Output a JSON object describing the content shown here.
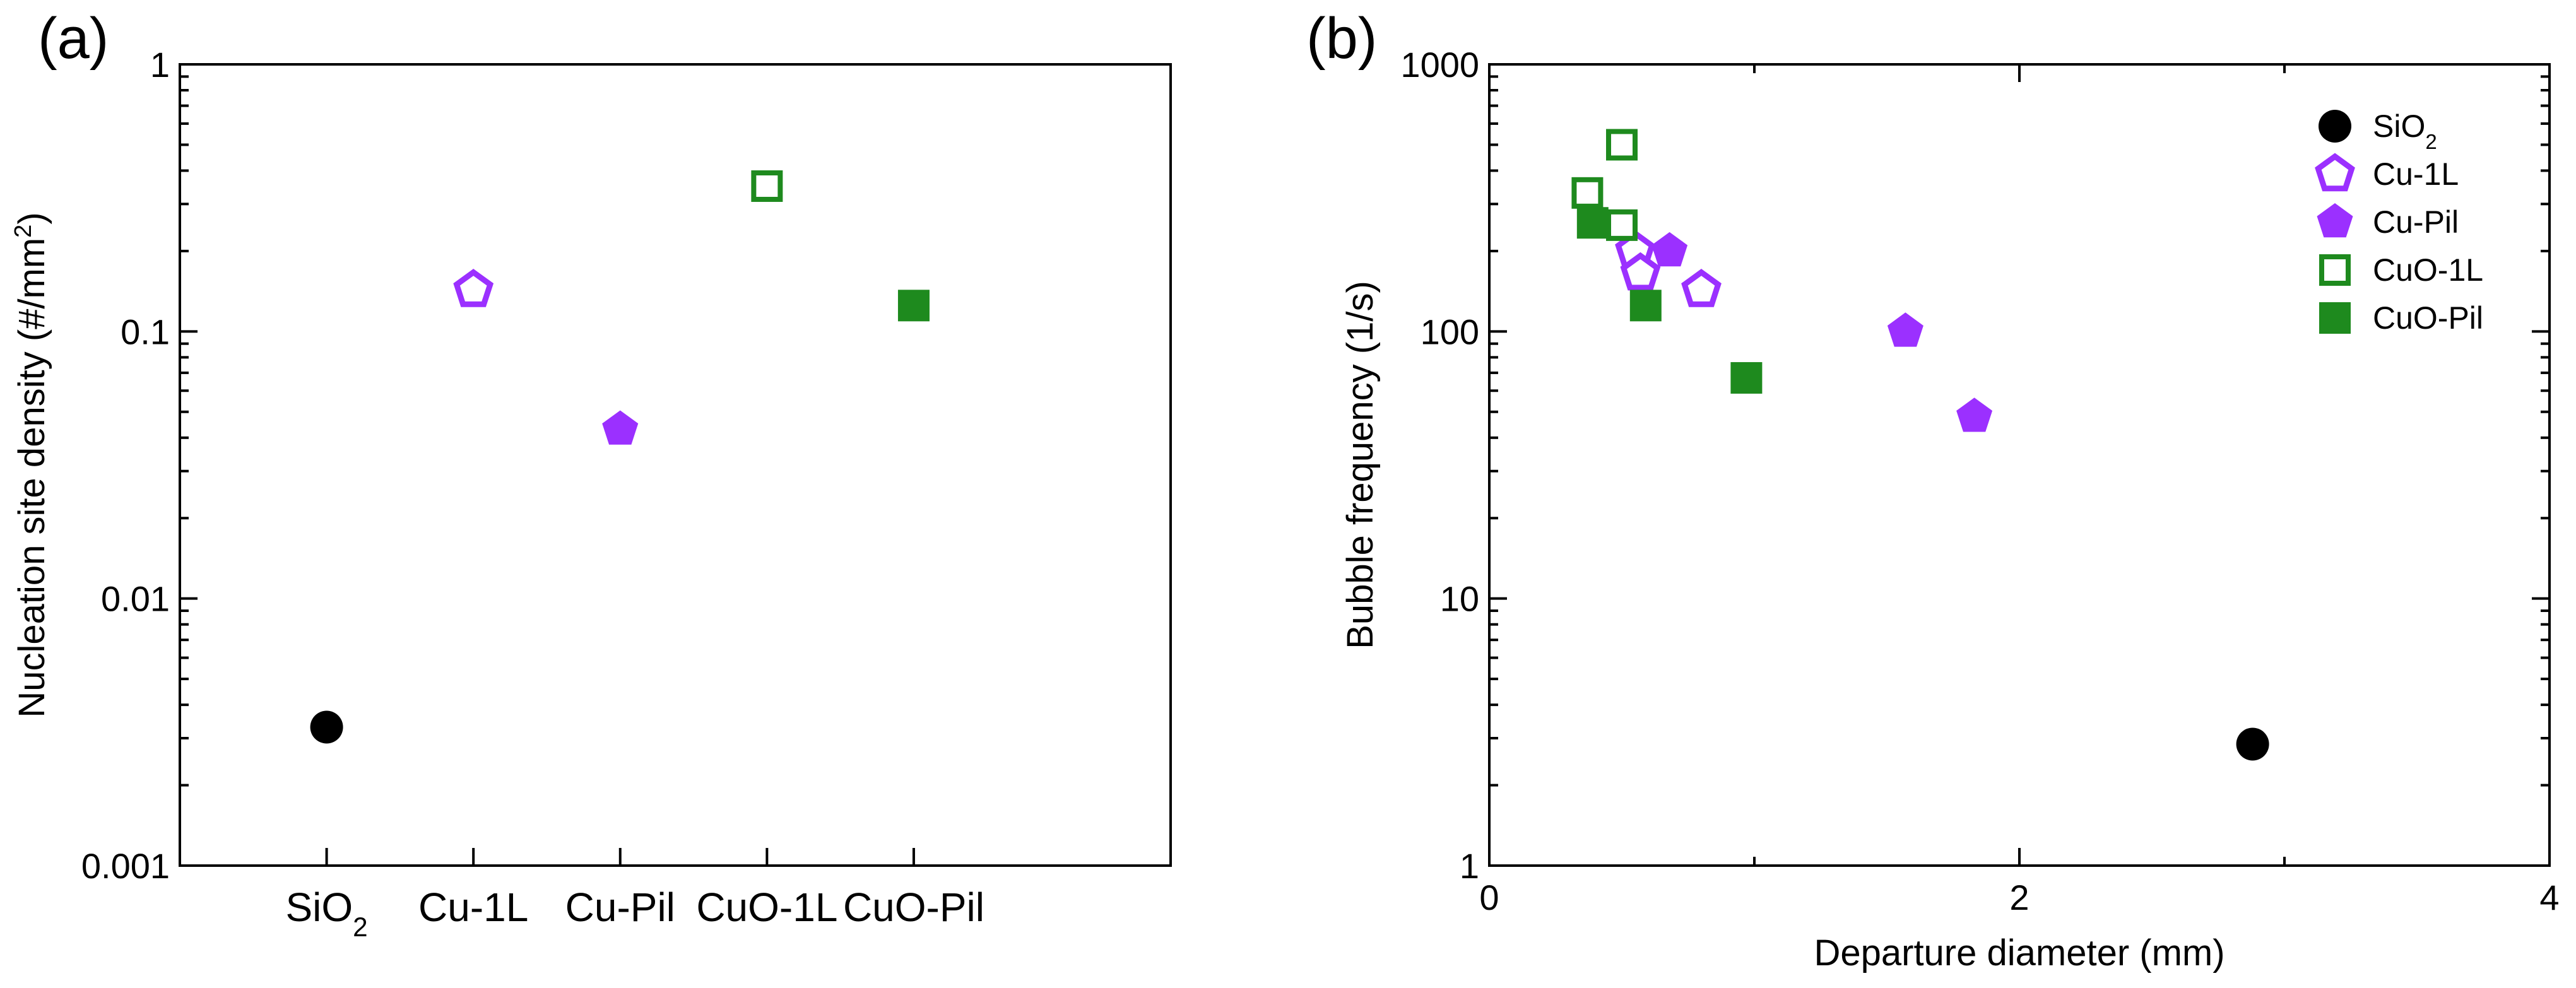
{
  "chart_data": [
    {
      "panel": "(a)",
      "type": "scatter",
      "xlabel": "",
      "ylabel": {
        "prefix": "Nucleation site density (#/mm",
        "sup": "2",
        "suffix": ")"
      },
      "yscale": "log",
      "ylim": [
        0.001,
        1
      ],
      "yticks": [
        0.001,
        0.01,
        0.1,
        1
      ],
      "ytick_labels": [
        "0.001",
        "0.01",
        "0.1",
        "1"
      ],
      "categories": [
        {
          "base": "SiO",
          "sub": "2"
        },
        {
          "base": "Cu-1L",
          "sub": ""
        },
        {
          "base": "Cu-Pil",
          "sub": ""
        },
        {
          "base": "CuO-1L",
          "sub": ""
        },
        {
          "base": "CuO-Pil",
          "sub": ""
        }
      ],
      "points": [
        {
          "category": 0,
          "value": 0.0033,
          "series": "SiO2"
        },
        {
          "category": 1,
          "value": 0.143,
          "series": "Cu-1L"
        },
        {
          "category": 2,
          "value": 0.043,
          "series": "Cu-Pil"
        },
        {
          "category": 3,
          "value": 0.35,
          "series": "CuO-1L"
        },
        {
          "category": 4,
          "value": 0.125,
          "series": "CuO-Pil"
        }
      ]
    },
    {
      "panel": "(b)",
      "type": "scatter",
      "xlabel": "Departure diameter (mm)",
      "ylabel": "Bubble frequency (1/s)",
      "xlim": [
        0,
        4
      ],
      "xticks": [
        0,
        2,
        4
      ],
      "xtick_labels": [
        "0",
        "2",
        "4"
      ],
      "yscale": "log",
      "ylim": [
        1,
        1000
      ],
      "yticks": [
        1,
        10,
        100,
        1000
      ],
      "ytick_labels": [
        "1",
        "10",
        "100",
        "1000"
      ],
      "legend_position": "top-right",
      "series": [
        {
          "name": "SiO2",
          "label": {
            "base": "SiO",
            "sub": "2"
          },
          "marker": "circle-filled",
          "color": "#000000",
          "points": [
            [
              2.88,
              2.85
            ]
          ]
        },
        {
          "name": "Cu-1L",
          "label": {
            "base": "Cu-1L",
            "sub": ""
          },
          "marker": "pentagon-open",
          "color": "#9b30ff",
          "points": [
            [
              0.55,
              200
            ],
            [
              0.57,
              165
            ],
            [
              0.8,
              143
            ]
          ]
        },
        {
          "name": "Cu-Pil",
          "label": {
            "base": "Cu-Pil",
            "sub": ""
          },
          "marker": "pentagon-filled",
          "color": "#9b30ff",
          "points": [
            [
              0.68,
              200
            ],
            [
              1.57,
              100
            ],
            [
              1.83,
              48
            ]
          ]
        },
        {
          "name": "CuO-1L",
          "label": {
            "base": "CuO-1L",
            "sub": ""
          },
          "marker": "square-open",
          "color": "#1e8a1e",
          "points": [
            [
              0.37,
              330
            ],
            [
              0.5,
              500
            ],
            [
              0.5,
              250
            ]
          ]
        },
        {
          "name": "CuO-Pil",
          "label": {
            "base": "CuO-Pil",
            "sub": ""
          },
          "marker": "square-filled",
          "color": "#1e8a1e",
          "points": [
            [
              0.39,
              255
            ],
            [
              0.59,
              125
            ],
            [
              0.97,
              67
            ]
          ]
        }
      ]
    }
  ]
}
